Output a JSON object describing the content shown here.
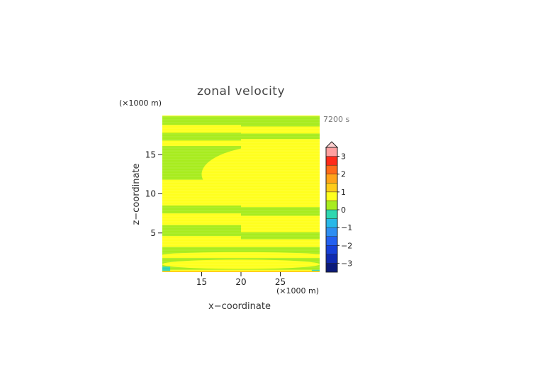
{
  "chart_data": {
    "type": "heatmap",
    "title": "zonal velocity",
    "xlabel": "x−coordinate",
    "ylabel": "z−coordinate",
    "x_unit": "(×1000 m)",
    "y_unit": "(×1000 m)",
    "time_label": "7200 s",
    "xlim": [
      10,
      30
    ],
    "ylim": [
      0,
      20
    ],
    "x_ticks": [
      {
        "value": 15,
        "label": "15"
      },
      {
        "value": 20,
        "label": "20"
      },
      {
        "value": 25,
        "label": "25"
      }
    ],
    "y_ticks": [
      {
        "value": 5,
        "label": "5"
      },
      {
        "value": 10,
        "label": "10"
      },
      {
        "value": 15,
        "label": "15"
      }
    ],
    "colorbar": {
      "min": -3.5,
      "max": 3.5,
      "step": 0.5,
      "extend_max": true,
      "tick_labels": [
        {
          "value": 3,
          "label": "3"
        },
        {
          "value": 2,
          "label": "2"
        },
        {
          "value": 1,
          "label": "1"
        },
        {
          "value": 0,
          "label": "0"
        },
        {
          "value": -1,
          "label": "−1"
        },
        {
          "value": -2,
          "label": "−2"
        },
        {
          "value": -3,
          "label": "−3"
        }
      ],
      "colors": {
        "-3.5": "#0b1a7a",
        "-3": "#0f2ab0",
        "-2.5": "#1640d8",
        "-2": "#2360f0",
        "-1.5": "#2e8ef2",
        "-1": "#28b8e8",
        "-0.5": "#2ed7b0",
        "0": "#a8ec1e",
        "0.5": "#ffff1e",
        "1": "#ffcc1a",
        "1.5": "#ffa31a",
        "2": "#ff6a1a",
        "2.5": "#ff2a1a",
        "3": "#ffa0a0",
        "3.5": "#ffd0d0"
      }
    },
    "background_value": 0.5,
    "bands": [
      {
        "x": [
          10,
          20
        ],
        "z": [
          18.8,
          19.9
        ],
        "value": 0
      },
      {
        "x": [
          20,
          30
        ],
        "z": [
          18.6,
          19.9
        ],
        "value": 0
      },
      {
        "x": [
          10,
          20
        ],
        "z": [
          16.8,
          17.8
        ],
        "value": 0
      },
      {
        "x": [
          20,
          30
        ],
        "z": [
          17.0,
          17.7
        ],
        "value": 0
      },
      {
        "x": [
          10,
          20
        ],
        "z": [
          11.8,
          16.1
        ],
        "value": 0
      },
      {
        "x": [
          20,
          30
        ],
        "z": [
          9.3,
          15.4
        ],
        "value": 0
      },
      {
        "x": [
          10,
          20
        ],
        "z": [
          7.5,
          8.5
        ],
        "value": 0
      },
      {
        "x": [
          20,
          30
        ],
        "z": [
          7.2,
          8.3
        ],
        "value": 0
      },
      {
        "x": [
          10,
          20
        ],
        "z": [
          4.6,
          6.0
        ],
        "value": 0
      },
      {
        "x": [
          20,
          30
        ],
        "z": [
          4.2,
          5.1
        ],
        "value": 0
      },
      {
        "x": [
          10,
          20
        ],
        "z": [
          2.2,
          3.2
        ],
        "value": 0
      },
      {
        "x": [
          20,
          30
        ],
        "z": [
          2.3,
          3.2
        ],
        "value": 0
      },
      {
        "x": [
          10,
          30
        ],
        "z": [
          0.3,
          1.8
        ],
        "value": 0
      },
      {
        "x": [
          10,
          11
        ],
        "z": [
          0.0,
          0.7
        ],
        "value": -0.5
      },
      {
        "x": [
          29,
          30
        ],
        "z": [
          0.0,
          0.3
        ],
        "value": -0.5
      },
      {
        "x": [
          10,
          30
        ],
        "z": [
          0.0,
          0.15
        ],
        "value": 1
      }
    ],
    "lenses": [
      {
        "cx": 20,
        "cz": 1.0,
        "rx": 10,
        "rz": 0.6,
        "value": 0.5
      },
      {
        "cx": 20,
        "cz": 2.2,
        "rx": 10,
        "rz": 0.35,
        "value": 0.5
      },
      {
        "cx": 25,
        "cz": 12.5,
        "rx": 10,
        "rz": 3.8,
        "value": 0.5
      },
      {
        "cx": 20,
        "cz": 11.1,
        "rx": 4.0,
        "rz": 0.5,
        "value": 0.5
      }
    ]
  }
}
